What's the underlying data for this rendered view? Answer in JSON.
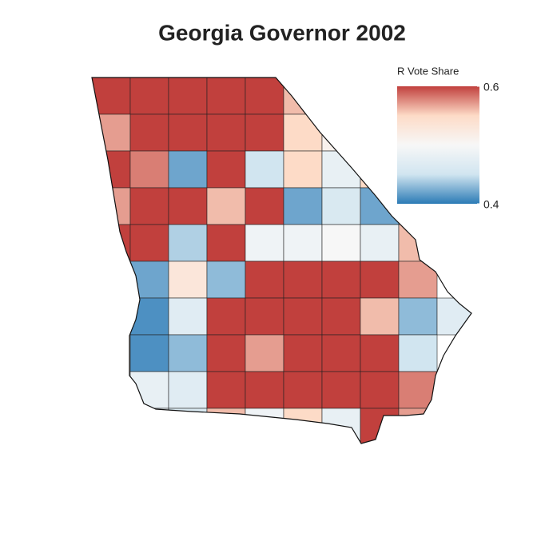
{
  "chart_data": {
    "type": "choropleth",
    "title": "Georgia Governor 2002",
    "legend_title": "R Vote Share",
    "colorbar": {
      "lim": [
        0.4,
        0.6
      ],
      "ticks": [
        0.6,
        0.4
      ]
    },
    "colors": [
      "#2c7bb6",
      "#d1e5f0",
      "#f7f7f7",
      "#fddbc7",
      "#c1403d"
    ],
    "values": [
      [
        0.62,
        0.62,
        0.62,
        0.62,
        0.62,
        0.56,
        null,
        null,
        null,
        null
      ],
      [
        0.57,
        0.62,
        0.62,
        0.62,
        0.62,
        0.55,
        0.51,
        null,
        null,
        null
      ],
      [
        0.62,
        0.58,
        0.42,
        0.62,
        0.45,
        0.55,
        0.48,
        0.55,
        null,
        null
      ],
      [
        0.57,
        0.62,
        0.62,
        0.56,
        0.62,
        0.42,
        0.46,
        0.42,
        null,
        null
      ],
      [
        0.62,
        0.62,
        0.44,
        0.62,
        0.49,
        0.49,
        0.5,
        0.48,
        0.56,
        null
      ],
      [
        null,
        0.42,
        0.53,
        0.43,
        0.62,
        0.62,
        0.62,
        0.62,
        0.57,
        null
      ],
      [
        null,
        0.41,
        0.47,
        0.62,
        0.62,
        0.62,
        0.62,
        0.56,
        0.43,
        0.47
      ],
      [
        null,
        0.41,
        0.43,
        0.62,
        0.57,
        0.62,
        0.62,
        0.62,
        0.45,
        null
      ],
      [
        null,
        0.48,
        0.47,
        0.62,
        0.62,
        0.62,
        0.62,
        0.62,
        0.58,
        null
      ],
      [
        null,
        0.48,
        0.46,
        0.56,
        0.49,
        0.55,
        0.48,
        0.62,
        0.57,
        null
      ]
    ]
  }
}
